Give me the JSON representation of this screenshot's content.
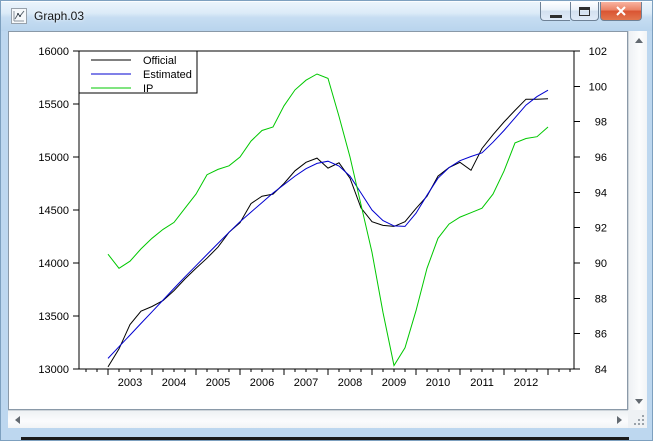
{
  "window": {
    "title": "Graph.03",
    "icon": "graph-icon",
    "controls": {
      "minimize": "minimize-window",
      "maximize": "maximize-window",
      "close": "close-window"
    }
  },
  "icons": {
    "titlebar_icon": "graph-icon",
    "scroll_up": "up-arrow",
    "scroll_down": "down-arrow",
    "scroll_left": "left-arrow",
    "scroll_right": "right-arrow",
    "resize_grip": "resize-grip-dots"
  },
  "colors": {
    "official_line": "#000000",
    "estimated_line": "#0000d0",
    "ip_line": "#00c800",
    "frame": "#bdd7ef",
    "close_button": "#d95433"
  },
  "chart_data": {
    "type": "line",
    "frequency": "quarterly",
    "x_start": 2003.0,
    "x_step": 0.25,
    "x_axis": {
      "range": [
        2002.34,
        2013.59
      ],
      "major_ticks": [
        2003,
        2004,
        2005,
        2006,
        2007,
        2008,
        2009,
        2010,
        2011,
        2012,
        2013
      ],
      "minor_tick_step": 0.25,
      "minor_tick_start": 2002.5,
      "minor_tick_end": 2013.5,
      "year_labels": [
        "2003",
        "2004",
        "2005",
        "2006",
        "2007",
        "2008",
        "2009",
        "2010",
        "2011",
        "2012"
      ]
    },
    "left_axis": {
      "range": [
        13000,
        16000
      ],
      "ticks": [
        16000,
        15500,
        15000,
        14500,
        14000,
        13500,
        13000
      ]
    },
    "right_axis": {
      "range": [
        84,
        102
      ],
      "ticks": [
        102,
        100,
        98,
        96,
        94,
        92,
        90,
        88,
        86,
        84
      ]
    },
    "legend": {
      "position": "top-left",
      "entries": [
        "Official",
        "Estimated",
        "IP"
      ]
    },
    "grid": false,
    "series": [
      {
        "name": "Official",
        "axis": "left",
        "color": "#000000",
        "values": [
          13020,
          13190,
          13420,
          13545,
          13590,
          13645,
          13740,
          13850,
          13950,
          14045,
          14150,
          14290,
          14380,
          14560,
          14630,
          14650,
          14750,
          14870,
          14950,
          14990,
          14895,
          14945,
          14800,
          14520,
          14390,
          14355,
          14345,
          14390,
          14515,
          14630,
          14820,
          14900,
          14950,
          14875,
          15080,
          15210,
          15330,
          15440,
          15545,
          15545,
          15550
        ]
      },
      {
        "name": "Estimated",
        "axis": "left",
        "color": "#0000d0",
        "values": [
          13100,
          13210,
          13320,
          13430,
          13540,
          13650,
          13760,
          13870,
          13975,
          14080,
          14185,
          14290,
          14390,
          14480,
          14570,
          14660,
          14740,
          14820,
          14890,
          14940,
          14960,
          14915,
          14820,
          14660,
          14500,
          14400,
          14350,
          14345,
          14470,
          14640,
          14800,
          14900,
          14965,
          15005,
          15040,
          15140,
          15250,
          15370,
          15490,
          15570,
          15630
        ]
      },
      {
        "name": "IP",
        "axis": "right",
        "color": "#00c800",
        "values": [
          90.5,
          89.7,
          90.1,
          90.8,
          91.4,
          91.9,
          92.3,
          93.1,
          93.9,
          95.0,
          95.3,
          95.5,
          96.0,
          96.9,
          97.5,
          97.7,
          98.9,
          99.8,
          100.35,
          100.7,
          100.45,
          98.3,
          96.0,
          93.3,
          90.6,
          87.2,
          84.2,
          85.2,
          87.3,
          89.7,
          91.4,
          92.2,
          92.6,
          92.85,
          93.1,
          93.9,
          95.2,
          96.8,
          97.05,
          97.15,
          97.7
        ]
      }
    ]
  }
}
